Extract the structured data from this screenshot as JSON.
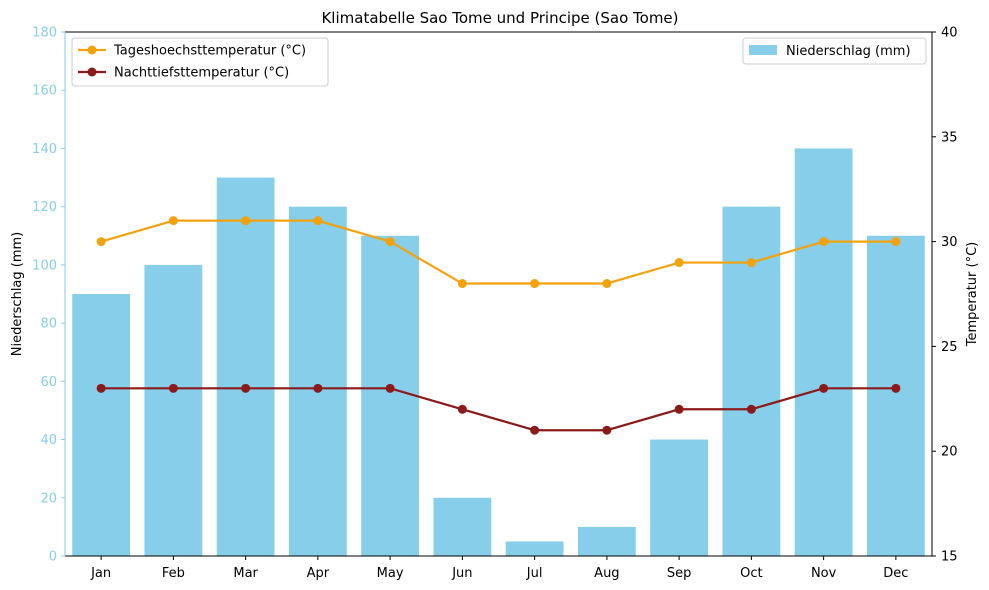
{
  "chart_data": {
    "type": "bar",
    "title": "Klimatabelle Sao Tome und Principe (Sao Tome)",
    "categories": [
      "Jan",
      "Feb",
      "Mar",
      "Apr",
      "May",
      "Jun",
      "Jul",
      "Aug",
      "Sep",
      "Oct",
      "Nov",
      "Dec"
    ],
    "bar_series": {
      "name": "Niederschlag (mm)",
      "axis": "left",
      "color": "#87ceeb",
      "values": [
        90,
        100,
        130,
        120,
        110,
        20,
        5,
        10,
        40,
        120,
        140,
        110
      ]
    },
    "line_series": [
      {
        "name": "Tageshoechsttemperatur (°C)",
        "axis": "right",
        "color": "#f2a20c",
        "values": [
          30,
          31,
          31,
          31,
          30,
          28,
          28,
          28,
          29,
          29,
          30,
          30
        ]
      },
      {
        "name": "Nachttiefsttemperatur (°C)",
        "axis": "right",
        "color": "#8b1a1a",
        "values": [
          23,
          23,
          23,
          23,
          23,
          22,
          21,
          21,
          22,
          22,
          23,
          23
        ]
      }
    ],
    "ylabel_left": "Niederschlag (mm)",
    "ylim_left": [
      0,
      180
    ],
    "yticks_left": [
      0,
      20,
      40,
      60,
      80,
      100,
      120,
      140,
      160,
      180
    ],
    "left_axis_color": "#87ceeb",
    "ylabel_right": "Temperatur (°C)",
    "ylim_right": [
      15,
      40
    ],
    "yticks_right": [
      15,
      20,
      25,
      30,
      35,
      40
    ],
    "grid": false,
    "legend_lines_placement": "top-left",
    "legend_bars_placement": "top-right"
  }
}
